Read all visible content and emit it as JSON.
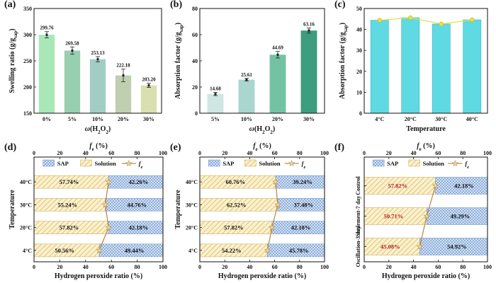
{
  "colors": {
    "a_bars": [
      "#a9e7b8",
      "#98cfb0",
      "#a2cdc4",
      "#bfcfb0",
      "#d9dfae"
    ],
    "b_bars": [
      "#cfe6e3",
      "#a9d6cf",
      "#74c2a4",
      "#3d9d7e"
    ],
    "c_bar": "#5fd9e2",
    "c_line": "#e8df45",
    "sap": "#8fb2dc",
    "solution": "#e8cf7c",
    "fe_line": "#b98c52"
  },
  "chart_data": [
    {
      "panel": "(a)",
      "type": "bar",
      "categories": [
        "0%",
        "5%",
        "10%",
        "20%",
        "30%"
      ],
      "values": [
        299.76,
        269.58,
        253.13,
        222.18,
        203.2
      ],
      "value_labels": [
        "299.76",
        "269.58",
        "253.13",
        "222.18",
        "203.20"
      ],
      "errors": [
        6,
        7,
        5,
        12,
        4
      ],
      "xlabel": "ω(H2O2)",
      "ylabel": "Swelling ratio (g/gsap)",
      "ylim": [
        150,
        350
      ],
      "yticks": [
        "150",
        "200",
        "250",
        "300",
        "350"
      ],
      "grid": false
    },
    {
      "panel": "(b)",
      "type": "bar",
      "categories": [
        "5%",
        "10%",
        "20%",
        "30%"
      ],
      "values": [
        14.68,
        25.61,
        44.69,
        63.16
      ],
      "value_labels": [
        "14.68",
        "25.61",
        "44.69",
        "63.16"
      ],
      "errors": [
        1.2,
        1.0,
        2.5,
        2.0
      ],
      "xlabel": "ω(H2O2)",
      "ylabel": "Absorption factor (g/gsap)",
      "ylim": [
        0,
        80
      ],
      "yticks": [
        "0",
        "20",
        "40",
        "60",
        "80"
      ],
      "grid": false
    },
    {
      "panel": "(c)",
      "type": "bar",
      "categories": [
        "4°C",
        "20°C",
        "30°C",
        "40°C"
      ],
      "values": [
        44.4,
        45.6,
        42.6,
        44.6
      ],
      "xlabel": "Temperature",
      "ylabel": "Absorption factor (g/gsap)",
      "ylim": [
        0,
        50
      ],
      "yticks": [
        "0",
        "10",
        "20",
        "30",
        "40",
        "50"
      ],
      "grid": false
    },
    {
      "panel": "(d)",
      "type": "bar",
      "orientation": "horizontal-stacked",
      "categories": [
        "4°C",
        "20°C",
        "30°C",
        "40°C"
      ],
      "solution": [
        50.56,
        57.82,
        55.24,
        57.74
      ],
      "sap": [
        49.44,
        42.18,
        44.76,
        42.26
      ],
      "solution_labels": [
        "50.56%",
        "57.82%",
        "55.24%",
        "57.74%"
      ],
      "sap_labels": [
        "49.44%",
        "42.18%",
        "44.76%",
        "42.26%"
      ],
      "fe": [
        50.56,
        57.82,
        55.24,
        57.74
      ],
      "xlabel": "Hydrogen peroxide ratio (%)",
      "top_xlabel": "fe (%)",
      "ylabel": "Temperature",
      "xlim": [
        0,
        100
      ],
      "xticks": [
        "0",
        "20",
        "40",
        "60",
        "80",
        "100"
      ],
      "legend": [
        "SAP",
        "Solution",
        "fe"
      ],
      "legend_position": "top"
    },
    {
      "panel": "(e)",
      "type": "bar",
      "orientation": "horizontal-stacked",
      "categories": [
        "4°C",
        "20°C",
        "30°C",
        "40°C"
      ],
      "solution": [
        54.22,
        57.82,
        62.52,
        60.76
      ],
      "sap": [
        45.78,
        42.18,
        37.48,
        39.24
      ],
      "solution_labels": [
        "54.22%",
        "57.82%",
        "62.52%",
        "60.76%"
      ],
      "sap_labels": [
        "45.78%",
        "42.18%",
        "37.48%",
        "39.24%"
      ],
      "fe": [
        54.22,
        57.82,
        62.52,
        60.76
      ],
      "xlabel": "Hydrogen peroxide ratio (%)",
      "top_xlabel": "fe (%)",
      "ylabel": "Temperature",
      "xlim": [
        0,
        100
      ],
      "xticks": [
        "0",
        "20",
        "40",
        "60",
        "80",
        "100"
      ],
      "legend": [
        "SAP",
        "Solution",
        "fe"
      ],
      "legend_position": "top"
    },
    {
      "panel": "(f)",
      "type": "bar",
      "orientation": "horizontal-stacked",
      "categories": [
        "Oscillation-3 day",
        "Settlement-7 day",
        "Control"
      ],
      "solution": [
        45.08,
        50.71,
        57.82
      ],
      "sap": [
        54.92,
        49.29,
        42.18
      ],
      "solution_labels": [
        "45.08%",
        "50.71%",
        "57.82%"
      ],
      "sap_labels": [
        "54.92%",
        "49.29%",
        "42.18%"
      ],
      "fe": [
        45.08,
        50.71,
        57.82
      ],
      "xlabel": "Hydrogen peroxide ratio (%)",
      "top_xlabel": "fe (%)",
      "ylabel": "",
      "xlim": [
        0,
        100
      ],
      "xticks": [
        "0",
        "20",
        "40",
        "60",
        "80",
        "100"
      ],
      "legend": [
        "SAP",
        "Solution",
        "fe"
      ],
      "legend_position": "top",
      "solution_label_color": "#b3212b"
    }
  ]
}
